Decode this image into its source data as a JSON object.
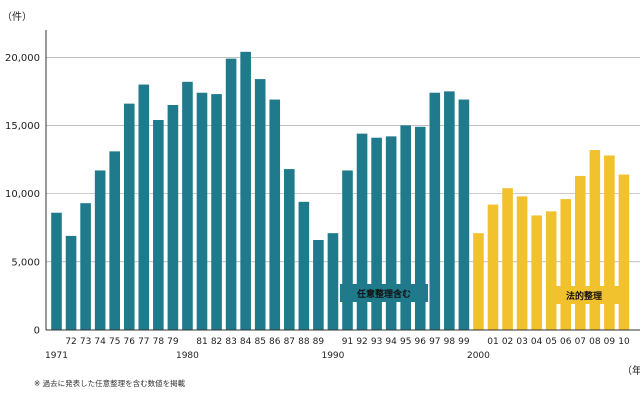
{
  "chart_data": {
    "type": "bar",
    "title": "",
    "ylabel": "（件）",
    "xunit": "（年）",
    "ylim": [
      0,
      22000
    ],
    "yticks": [
      0,
      5000,
      10000,
      15000,
      20000
    ],
    "ytick_labels": [
      "0",
      "5,000",
      "10,000",
      "15,000",
      "20,000"
    ],
    "colors": {
      "series_a": "#1f7a8c",
      "series_b": "#f2c12e",
      "axis": "#333333",
      "grid": "#999999"
    },
    "categories": [
      "1971",
      "72",
      "73",
      "74",
      "75",
      "76",
      "77",
      "78",
      "79",
      "1980",
      "81",
      "82",
      "83",
      "84",
      "85",
      "86",
      "87",
      "88",
      "89",
      "1990",
      "91",
      "92",
      "93",
      "94",
      "95",
      "96",
      "97",
      "98",
      "99",
      "2000",
      "01",
      "02",
      "03",
      "04",
      "05",
      "06",
      "07",
      "08",
      "09",
      "10"
    ],
    "category_labels": [
      "",
      "72",
      "73",
      "74",
      "75",
      "76",
      "77",
      "78",
      "79",
      "",
      "81",
      "82",
      "83",
      "84",
      "85",
      "86",
      "87",
      "88",
      "89",
      "",
      "91",
      "92",
      "93",
      "94",
      "95",
      "96",
      "97",
      "98",
      "99",
      "",
      "01",
      "02",
      "03",
      "04",
      "05",
      "06",
      "07",
      "08",
      "09",
      "10"
    ],
    "decade_labels": [
      "1971",
      "1980",
      "1990",
      "2000"
    ],
    "series": [
      {
        "name": "任意整理含む",
        "color": "#1f7a8c",
        "values": [
          8600,
          6900,
          9300,
          11700,
          13100,
          16600,
          18000,
          15400,
          16500,
          18200,
          17400,
          17300,
          19900,
          20400,
          18400,
          16900,
          11800,
          9400,
          6600,
          7100,
          11700,
          14400,
          14100,
          14200,
          15000,
          14900,
          17400,
          17500,
          16900,
          null,
          null,
          null,
          null,
          null,
          null,
          null,
          null,
          null,
          null,
          null
        ]
      },
      {
        "name": "法的整理",
        "color": "#f2c12e",
        "values": [
          null,
          null,
          null,
          null,
          null,
          null,
          null,
          null,
          null,
          null,
          null,
          null,
          null,
          null,
          null,
          null,
          null,
          null,
          null,
          null,
          null,
          null,
          null,
          null,
          null,
          null,
          null,
          null,
          null,
          7100,
          9200,
          10400,
          9800,
          8400,
          8700,
          9600,
          11300,
          13200,
          12800,
          11400
        ]
      }
    ],
    "footnote": "※ 過去に発表した任意整理を含む数値を掲載"
  }
}
